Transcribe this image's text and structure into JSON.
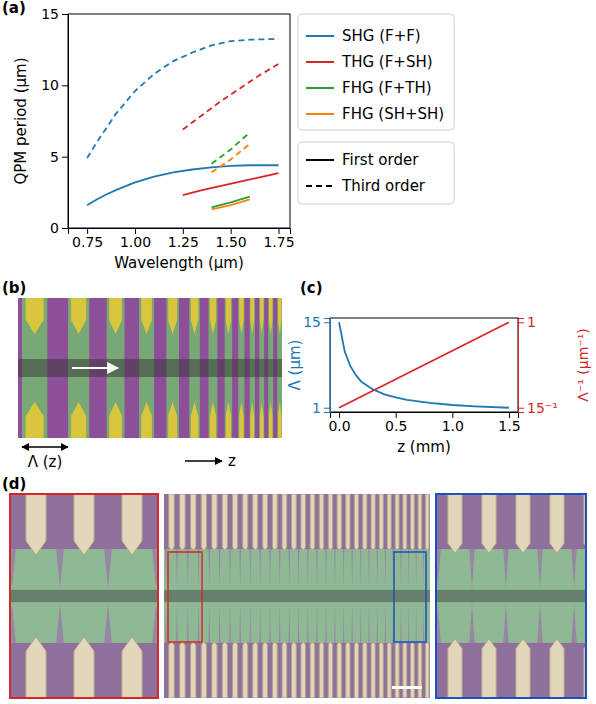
{
  "chart_data": [
    {
      "type": "line",
      "panel_label": "(a)",
      "x_label": "Wavelength (μm)",
      "y_label": "QPM period (μm)",
      "xlim": [
        0.65,
        1.81
      ],
      "xticks": [
        0.75,
        {
          "value": 1,
          "label": "1.00"
        },
        1.25,
        {
          "value": 1.5,
          "label": "1.50"
        },
        1.75
      ],
      "ylim": [
        0,
        15
      ],
      "yticks": [
        0,
        5,
        10,
        15
      ],
      "legend": "right",
      "series": [
        {
          "name": "SHG (F+F)",
          "color": "#1f77b4",
          "x": [
            0.75,
            0.8,
            0.85,
            0.9,
            1.0,
            1.1,
            1.2,
            1.3,
            1.4,
            1.5,
            1.6,
            1.75
          ],
          "orders": [
            {
              "line_style": "solid",
              "values": [
                1.6,
                2.0,
                2.35,
                2.65,
                3.2,
                3.6,
                3.9,
                4.1,
                4.25,
                4.35,
                4.4,
                4.4
              ]
            },
            {
              "line_style": "dashed",
              "values": [
                4.9,
                6.0,
                7.0,
                8.0,
                9.6,
                10.8,
                11.7,
                12.3,
                12.8,
                13.1,
                13.2,
                13.25
              ]
            }
          ]
        },
        {
          "name": "THG (F+SH)",
          "color": "#d62728",
          "x": [
            1.25,
            1.35,
            1.45,
            1.55,
            1.65,
            1.75
          ],
          "orders": [
            {
              "line_style": "solid",
              "values": [
                2.3,
                2.65,
                2.95,
                3.25,
                3.55,
                3.85
              ]
            },
            {
              "line_style": "dashed",
              "values": [
                6.9,
                7.9,
                8.9,
                9.8,
                10.7,
                11.5
              ]
            }
          ]
        },
        {
          "name": "FHG (F+TH)",
          "color": "#2ca02c",
          "x": [
            1.4,
            1.5,
            1.6
          ],
          "orders": [
            {
              "line_style": "solid",
              "values": [
                1.45,
                1.8,
                2.2
              ]
            },
            {
              "line_style": "dashed",
              "values": [
                4.5,
                5.5,
                6.7
              ]
            }
          ]
        },
        {
          "name": "FHG (SH+SH)",
          "color": "#ff7f0e",
          "x": [
            1.4,
            1.5,
            1.6
          ],
          "orders": [
            {
              "line_style": "solid",
              "values": [
                1.3,
                1.6,
                2.0
              ]
            },
            {
              "line_style": "dashed",
              "values": [
                3.9,
                4.8,
                5.9
              ]
            }
          ]
        }
      ],
      "order_legend": [
        {
          "name": "First order",
          "line_style": "solid"
        },
        {
          "name": "Third order",
          "line_style": "dashed"
        }
      ]
    },
    {
      "type": "line",
      "panel_label": "(c)",
      "x_label": "z (mm)",
      "y_label": "Λ (μm)",
      "y2_label": "Λ⁻¹ (μm⁻¹)",
      "xlim": [
        -0.08,
        1.58
      ],
      "xticks": [
        {
          "value": 0,
          "label": "0.0"
        },
        0.5,
        {
          "value": 1,
          "label": "1.0"
        },
        1.5
      ],
      "ylim": [
        0.3,
        15.7
      ],
      "yticks": [
        1,
        15
      ],
      "y2lim": [
        0.02,
        1.047
      ],
      "y2ticks": [
        {
          "value": 0.0667,
          "label": "15⁻¹"
        },
        1
      ],
      "series": [
        {
          "color": "#1f77b4",
          "x": [
            0,
            0.05,
            0.1,
            0.15,
            0.2,
            0.3,
            0.4,
            0.5,
            0.6,
            0.8,
            1.0,
            1.2,
            1.5
          ],
          "values": [
            15,
            10.2,
            7.8,
            6.3,
            5.2,
            4.0,
            3.2,
            2.7,
            2.3,
            1.8,
            1.45,
            1.23,
            1.0
          ]
        },
        {
          "color": "#d62728",
          "axis": "y2",
          "x": [
            0,
            1.5
          ],
          "values": [
            0.0667,
            1
          ]
        }
      ]
    }
  ],
  "diagram_b": {
    "panel_label": "(b)",
    "period_label": "Λ (z)",
    "axis_label": "z"
  },
  "image_d": {
    "panel_label": "(d)"
  }
}
